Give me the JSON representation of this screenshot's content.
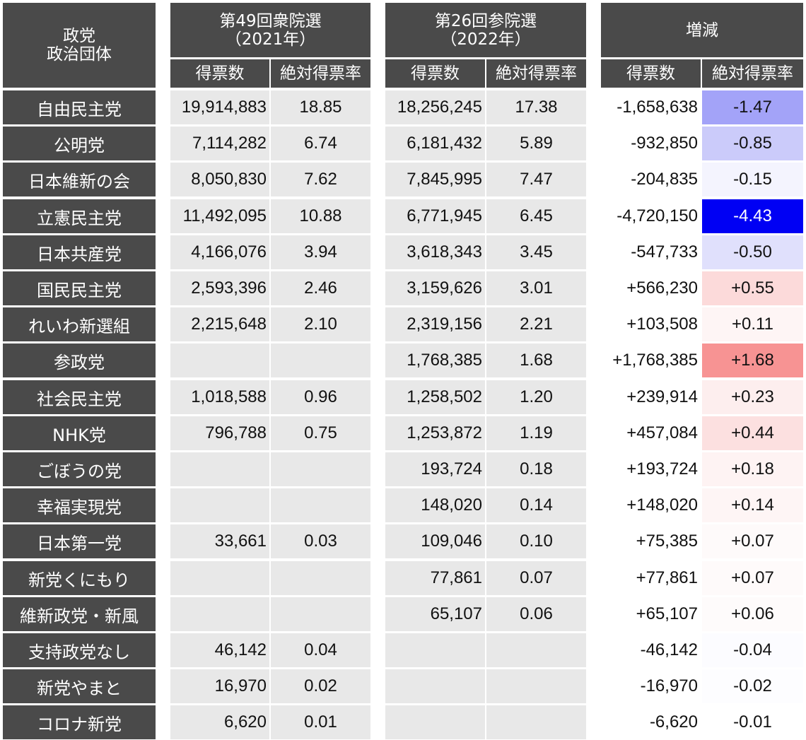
{
  "header": {
    "party_label_line1": "政党",
    "party_label_line2": "政治団体",
    "shugiin_line1": "第49回衆院選",
    "shugiin_line2": "（2021年）",
    "sangiin_line1": "第26回参院選",
    "sangiin_line2": "（2022年）",
    "change": "増減",
    "votes": "得票数",
    "abs_rate": "絶対得票率"
  },
  "rows": [
    {
      "party": "自由民主党",
      "v2021": "19,914,883",
      "r2021": "18.85",
      "v2022": "18,256,245",
      "r2022": "17.38",
      "dv": "-1,658,638",
      "dr": "-1.47",
      "dr_color": "#a3a3f8",
      "dr_text_color": "#111111"
    },
    {
      "party": "公明党",
      "v2021": "7,114,282",
      "r2021": "6.74",
      "v2022": "6,181,432",
      "r2022": "5.89",
      "dv": "-932,850",
      "dr": "-0.85",
      "dr_color": "#cbcbfa",
      "dr_text_color": "#111111"
    },
    {
      "party": "日本維新の会",
      "v2021": "8,050,830",
      "r2021": "7.62",
      "v2022": "7,845,995",
      "r2022": "7.47",
      "dv": "-204,835",
      "dr": "-0.15",
      "dr_color": "#f4f4fe",
      "dr_text_color": "#111111"
    },
    {
      "party": "立憲民主党",
      "v2021": "11,492,095",
      "r2021": "10.88",
      "v2022": "6,771,945",
      "r2022": "6.45",
      "dv": "-4,720,150",
      "dr": "-4.43",
      "dr_color": "#0000f4",
      "dr_text_color": "#ffffff"
    },
    {
      "party": "日本共産党",
      "v2021": "4,166,076",
      "r2021": "3.94",
      "v2022": "3,618,343",
      "r2022": "3.45",
      "dv": "-547,733",
      "dr": "-0.50",
      "dr_color": "#e0e0fc",
      "dr_text_color": "#111111"
    },
    {
      "party": "国民民主党",
      "v2021": "2,593,396",
      "r2021": "2.46",
      "v2022": "3,159,626",
      "r2022": "3.01",
      "dv": "+566,230",
      "dr": "+0.55",
      "dr_color": "#fcdada",
      "dr_text_color": "#111111"
    },
    {
      "party": "れいわ新選組",
      "v2021": "2,215,648",
      "r2021": "2.10",
      "v2022": "2,319,156",
      "r2022": "2.21",
      "dv": "+103,508",
      "dr": "+0.11",
      "dr_color": "#fef5f5",
      "dr_text_color": "#111111"
    },
    {
      "party": "参政党",
      "v2021": "",
      "r2021": "",
      "v2022": "1,768,385",
      "r2022": "1.68",
      "dv": "+1,768,385",
      "dr": "+1.68",
      "dr_color": "#f79393",
      "dr_text_color": "#111111"
    },
    {
      "party": "社会民主党",
      "v2021": "1,018,588",
      "r2021": "0.96",
      "v2022": "1,258,502",
      "r2022": "1.20",
      "dv": "+239,914",
      "dr": "+0.23",
      "dr_color": "#fdeeee",
      "dr_text_color": "#111111"
    },
    {
      "party": "NHK党",
      "v2021": "796,788",
      "r2021": "0.75",
      "v2022": "1,253,872",
      "r2022": "1.19",
      "dv": "+457,084",
      "dr": "+0.44",
      "dr_color": "#fce0e0",
      "dr_text_color": "#111111"
    },
    {
      "party": "ごぼうの党",
      "v2021": "",
      "r2021": "",
      "v2022": "193,724",
      "r2022": "0.18",
      "dv": "+193,724",
      "dr": "+0.18",
      "dr_color": "#fef3f3",
      "dr_text_color": "#111111"
    },
    {
      "party": "幸福実現党",
      "v2021": "",
      "r2021": "",
      "v2022": "148,020",
      "r2022": "0.14",
      "dv": "+148,020",
      "dr": "+0.14",
      "dr_color": "#fef5f5",
      "dr_text_color": "#111111"
    },
    {
      "party": "日本第一党",
      "v2021": "33,661",
      "r2021": "0.03",
      "v2022": "109,046",
      "r2022": "0.10",
      "dv": "+75,385",
      "dr": "+0.07",
      "dr_color": "#fefafa",
      "dr_text_color": "#111111"
    },
    {
      "party": "新党くにもり",
      "v2021": "",
      "r2021": "",
      "v2022": "77,861",
      "r2022": "0.07",
      "dv": "+77,861",
      "dr": "+0.07",
      "dr_color": "#fefafa",
      "dr_text_color": "#111111"
    },
    {
      "party": "維新政党・新風",
      "v2021": "",
      "r2021": "",
      "v2022": "65,107",
      "r2022": "0.06",
      "dv": "+65,107",
      "dr": "+0.06",
      "dr_color": "#fefbfb",
      "dr_text_color": "#111111"
    },
    {
      "party": "支持政党なし",
      "v2021": "46,142",
      "r2021": "0.04",
      "v2022": "",
      "r2022": "",
      "dv": "-46,142",
      "dr": "-0.04",
      "dr_color": "#fcfcff",
      "dr_text_color": "#111111"
    },
    {
      "party": "新党やまと",
      "v2021": "16,970",
      "r2021": "0.02",
      "v2022": "",
      "r2022": "",
      "dv": "-16,970",
      "dr": "-0.02",
      "dr_color": "#fdfdff",
      "dr_text_color": "#111111"
    },
    {
      "party": "コロナ新党",
      "v2021": "6,620",
      "r2021": "0.01",
      "v2022": "",
      "r2022": "",
      "dv": "-6,620",
      "dr": "-0.01",
      "dr_color": "#ffffff",
      "dr_text_color": "#111111"
    }
  ]
}
